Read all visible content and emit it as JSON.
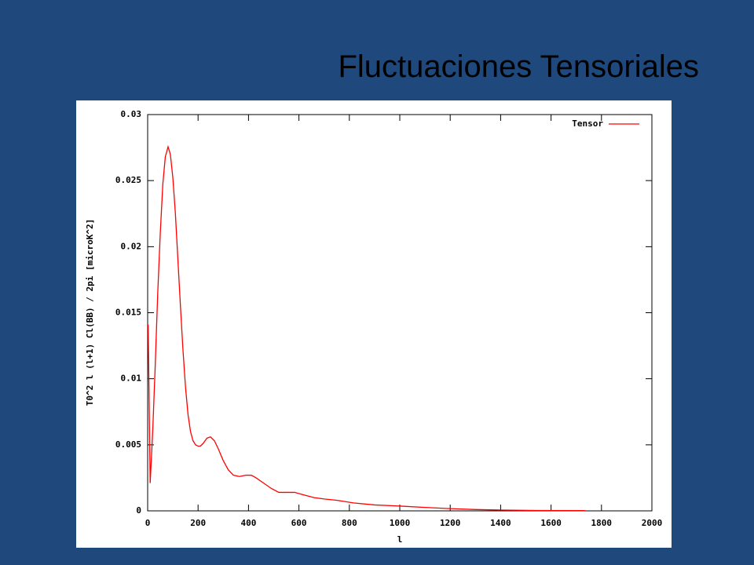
{
  "chart_data": {
    "type": "line",
    "title": "Fluctuaciones Tensoriales",
    "x_label": "l",
    "y_label": "T0^2 l (l+1) Cl(BB) / 2pi [microK^2]",
    "x": [
      2,
      10,
      20,
      30,
      40,
      50,
      60,
      70,
      81,
      90,
      100,
      110,
      120,
      130,
      140,
      150,
      160,
      170,
      180,
      190,
      200,
      209,
      220,
      235,
      249,
      265,
      280,
      300,
      320,
      340,
      364,
      390,
      411,
      430,
      460,
      490,
      520,
      550,
      583,
      620,
      660,
      700,
      750,
      816,
      900,
      1003,
      1100,
      1190,
      1300,
      1408,
      1550,
      1735
    ],
    "series": [
      {
        "name": "Tensor",
        "color": "#ff0000",
        "values": [
          0.0141,
          0.0021,
          0.006,
          0.011,
          0.0165,
          0.021,
          0.0247,
          0.0268,
          0.02756,
          0.027,
          0.0252,
          0.0225,
          0.019,
          0.0155,
          0.0122,
          0.0094,
          0.0073,
          0.006,
          0.0053,
          0.005,
          0.0049,
          0.0049,
          0.0051,
          0.0055,
          0.0056,
          0.0053,
          0.0047,
          0.0038,
          0.0031,
          0.0027,
          0.0026,
          0.0027,
          0.0027,
          0.0025,
          0.0021,
          0.0017,
          0.0014,
          0.0014,
          0.0014,
          0.0012,
          0.001,
          0.0009,
          0.0008,
          0.0006,
          0.00045,
          0.00036,
          0.00026,
          0.00018,
          0.0001,
          6e-05,
          3e-05,
          2e-05
        ]
      }
    ],
    "xlim": [
      0,
      2000
    ],
    "xticks": [
      0,
      200,
      400,
      600,
      800,
      1000,
      1200,
      1400,
      1600,
      1800,
      2000
    ],
    "ylim": [
      0,
      0.03
    ],
    "yticks": [
      0,
      0.005,
      0.01,
      0.015,
      0.02,
      0.025,
      0.03
    ],
    "legend": "upper right"
  }
}
